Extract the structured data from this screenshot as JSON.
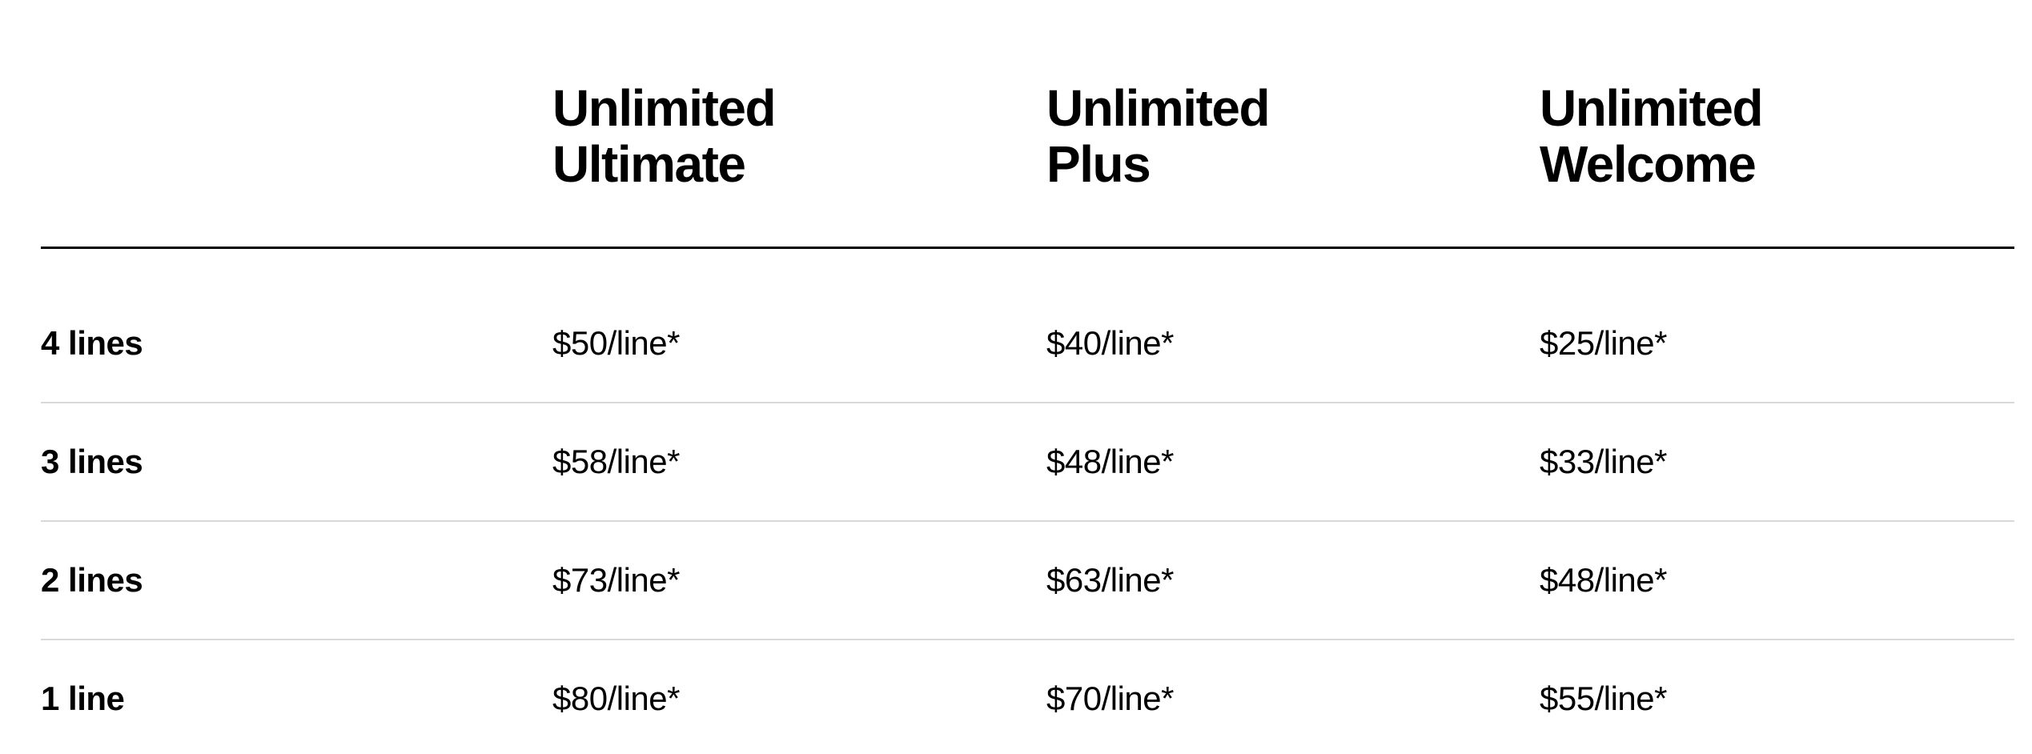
{
  "table": {
    "plans": [
      {
        "line1": "Unlimited",
        "line2": "Ultimate"
      },
      {
        "line1": "Unlimited",
        "line2": "Plus"
      },
      {
        "line1": "Unlimited",
        "line2": "Welcome"
      }
    ],
    "rows": [
      {
        "label": "4 lines",
        "prices": [
          "$50/line*",
          "$40/line*",
          "$25/line*"
        ]
      },
      {
        "label": "3 lines",
        "prices": [
          "$58/line*",
          "$48/line*",
          "$33/line*"
        ]
      },
      {
        "label": "2 lines",
        "prices": [
          "$73/line*",
          "$63/line*",
          "$48/line*"
        ]
      },
      {
        "label": "1 line",
        "prices": [
          "$80/line*",
          "$70/line*",
          "$55/line*"
        ]
      }
    ]
  },
  "colors": {
    "text": "#000000",
    "header_rule": "#000000",
    "row_divider": "#d8dada",
    "background": "#ffffff"
  }
}
